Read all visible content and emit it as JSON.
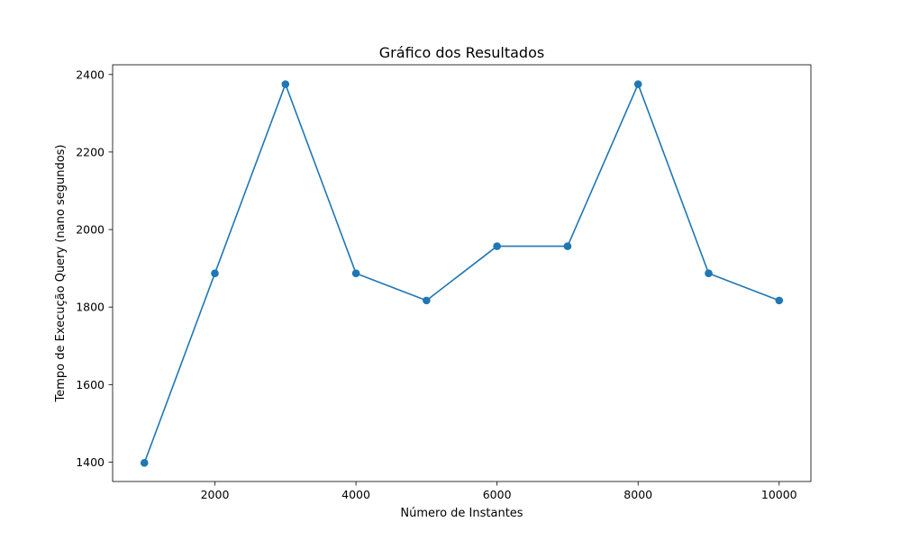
{
  "chart_data": {
    "type": "line",
    "title": "Gráfico dos Resultados",
    "xlabel": "Número de Instantes",
    "ylabel": "Tempo de Execução Query (nano segundos)",
    "x": [
      1000,
      2000,
      3000,
      4000,
      5000,
      6000,
      7000,
      8000,
      9000,
      10000
    ],
    "series": [
      {
        "values": [
          1398,
          1887,
          2375,
          1887,
          1817,
          1957,
          1957,
          2375,
          1887,
          1817
        ]
      }
    ],
    "xlim": [
      550,
      10450
    ],
    "ylim": [
      1350,
      2425
    ],
    "xticks": [
      2000,
      4000,
      6000,
      8000,
      10000
    ],
    "yticks": [
      1400,
      1600,
      1800,
      2000,
      2200,
      2400
    ],
    "grid": false,
    "line_color": "#1f77b4"
  }
}
